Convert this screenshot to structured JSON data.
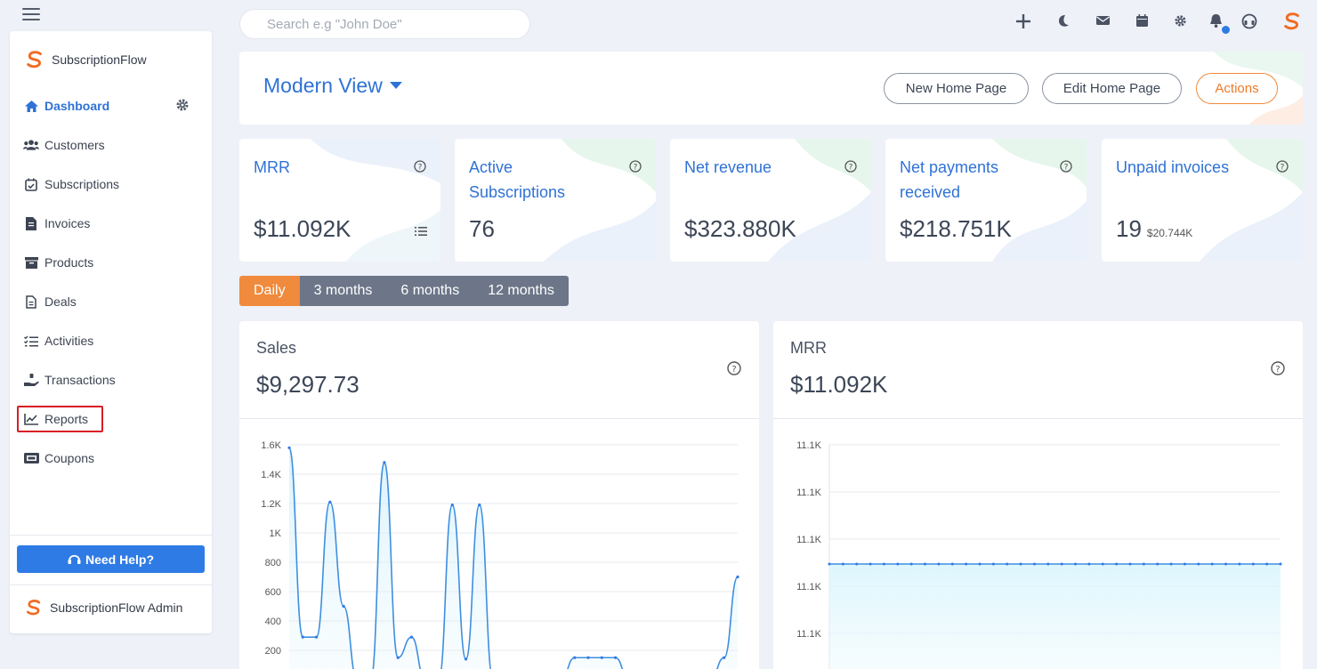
{
  "search": {
    "placeholder": "Search e.g \"John Doe\""
  },
  "sidebar": {
    "brand": "SubscriptionFlow",
    "items": [
      {
        "label": "Dashboard",
        "icon": "home-icon"
      },
      {
        "label": "Customers",
        "icon": "users-icon"
      },
      {
        "label": "Subscriptions",
        "icon": "calendar-check-icon"
      },
      {
        "label": "Invoices",
        "icon": "invoice-icon"
      },
      {
        "label": "Products",
        "icon": "archive-icon"
      },
      {
        "label": "Deals",
        "icon": "file-icon"
      },
      {
        "label": "Activities",
        "icon": "checklist-icon"
      },
      {
        "label": "Transactions",
        "icon": "hand-coin-icon"
      },
      {
        "label": "Reports",
        "icon": "chart-line-icon"
      },
      {
        "label": "Coupons",
        "icon": "ticket-icon"
      }
    ],
    "help_label": "Need Help?",
    "admin_label": "SubscriptionFlow Admin"
  },
  "header": {
    "view_title": "Modern View",
    "new_home": "New Home Page",
    "edit_home": "Edit Home Page",
    "actions": "Actions"
  },
  "kpis": [
    {
      "label": "MRR",
      "value": "$11.092K"
    },
    {
      "label": "Active Subscriptions",
      "value": "76"
    },
    {
      "label": "Net revenue",
      "value": "$323.880K"
    },
    {
      "label": "Net payments received",
      "value": "$218.751K"
    },
    {
      "label": "Unpaid invoices",
      "value": "19",
      "sub": "$20.744K"
    }
  ],
  "tabs": [
    "Daily",
    "3 months",
    "6 months",
    "12 months"
  ],
  "colors": {
    "accent": "#2f72d6",
    "orange": "#f08a3c",
    "tab_gray": "#6c7688"
  },
  "chart_data": [
    {
      "type": "line",
      "title": "Sales",
      "value": "$9,297.73",
      "y_ticks": [
        "1.6K",
        "1.4K",
        "1.2K",
        "1K",
        "800",
        "600",
        "400",
        "200"
      ],
      "ylim": [
        0,
        1600
      ],
      "grid": true,
      "values": [
        1580,
        290,
        290,
        1210,
        500,
        0,
        0,
        1480,
        150,
        290,
        0,
        0,
        1190,
        140,
        1190,
        0,
        0,
        0,
        0,
        0,
        0,
        150,
        150,
        150,
        150,
        0,
        0,
        0,
        0,
        0,
        0,
        0,
        150,
        700
      ]
    },
    {
      "type": "line",
      "title": "MRR",
      "value": "$11.092K",
      "y_ticks": [
        "11.1K",
        "11.1K",
        "11.1K",
        "11.1K",
        "11.1K"
      ],
      "grid": true,
      "values": [
        11092,
        11092,
        11092,
        11092,
        11092,
        11092,
        11092,
        11092,
        11092,
        11092,
        11092,
        11092,
        11092,
        11092,
        11092,
        11092,
        11092,
        11092,
        11092,
        11092,
        11092,
        11092,
        11092,
        11092,
        11092,
        11092,
        11092,
        11092,
        11092,
        11092,
        11092,
        11092,
        11092,
        11092
      ]
    }
  ]
}
